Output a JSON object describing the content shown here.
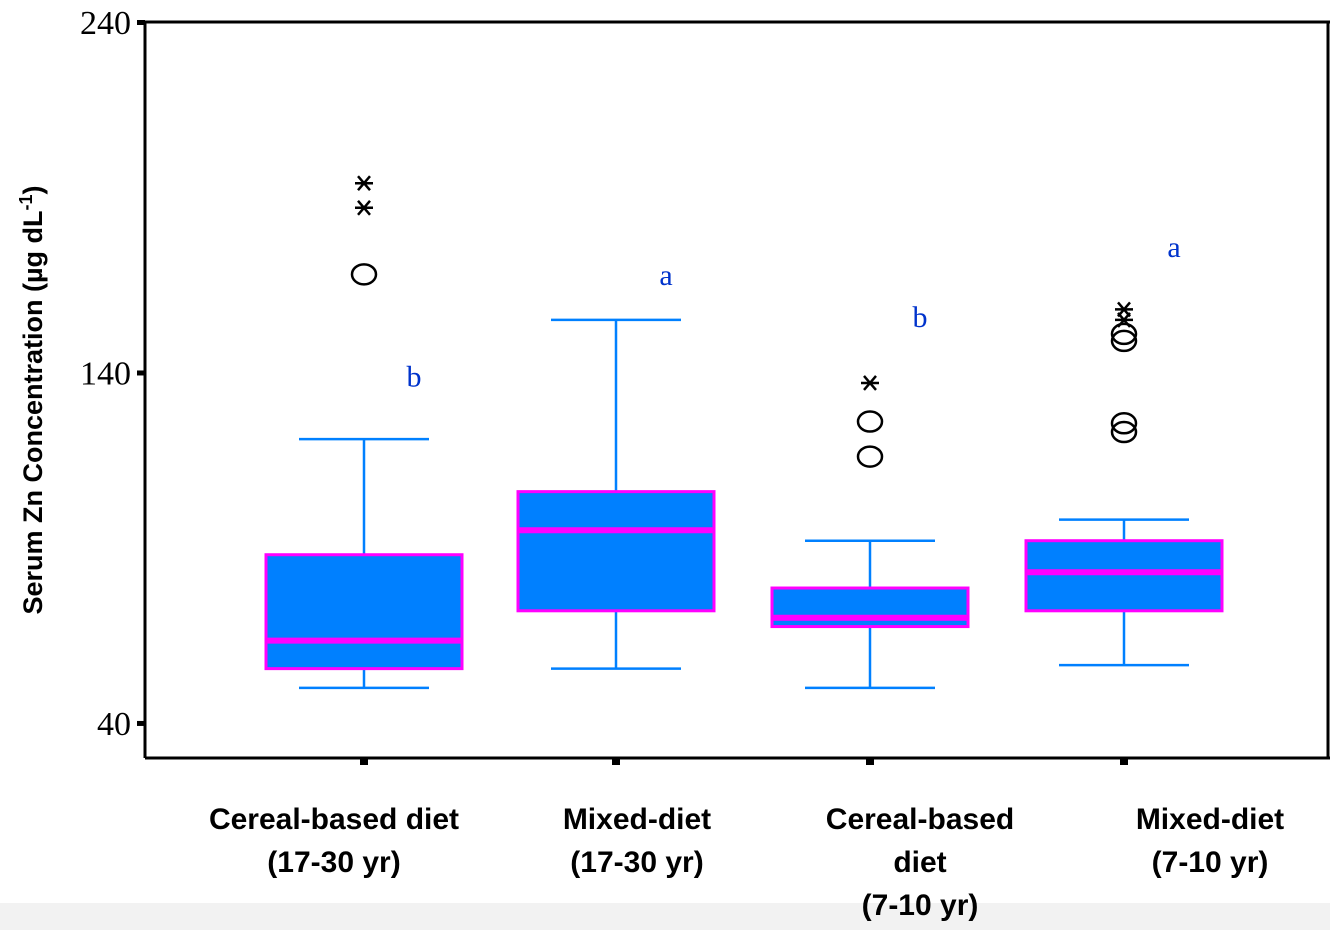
{
  "chart_data": {
    "type": "box",
    "ylabel": "Serum Zn Concentration (µg dL",
    "ylabel_superscript": "-1",
    "ylabel_close": ")",
    "ylim": [
      40,
      240
    ],
    "yticks": [
      40,
      140,
      240
    ],
    "grid": false,
    "colors": {
      "box_fill": "#0080ff",
      "box_edge": "#ff00ff",
      "median": "#ff00ff",
      "whisker": "#0080ff",
      "letters": "#0033cc",
      "outliers": "#000000"
    },
    "categories": [
      {
        "lines": [
          "Cereal-based diet",
          "(17-30 yr)"
        ]
      },
      {
        "lines": [
          "Mixed-diet",
          "(17-30 yr)"
        ]
      },
      {
        "lines": [
          "Cereal-based",
          "diet",
          "(7-10 yr)"
        ]
      },
      {
        "lines": [
          "Mixed-diet",
          "(7-10 yr)"
        ]
      }
    ],
    "boxes": [
      {
        "whisker_low": 50,
        "q1": 55.5,
        "median": 63.5,
        "q3": 88,
        "whisker_high": 121,
        "outliers_circle": [
          168
        ],
        "outliers_star": [
          194,
          187
        ],
        "letter": "b",
        "letter_y": 136
      },
      {
        "whisker_low": 55.5,
        "q1": 72,
        "median": 95,
        "q3": 106,
        "whisker_high": 155,
        "outliers_circle": [],
        "outliers_star": [],
        "letter": "a",
        "letter_y": 165
      },
      {
        "whisker_low": 50,
        "q1": 67.5,
        "median": 70,
        "q3": 78.5,
        "whisker_high": 92,
        "outliers_circle": [
          116,
          126
        ],
        "outliers_star": [
          137
        ],
        "letter": "b",
        "letter_y": 153
      },
      {
        "whisker_low": 56.5,
        "q1": 72,
        "median": 83,
        "q3": 92,
        "whisker_high": 98,
        "outliers_circle": [
          123,
          125.5,
          149,
          151
        ],
        "outliers_star": [
          155,
          158
        ],
        "letter": "a",
        "letter_y": 173
      }
    ]
  }
}
